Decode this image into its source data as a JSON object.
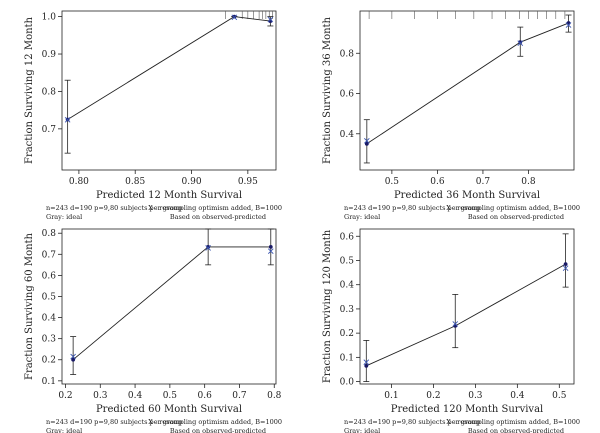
{
  "chart_data": [
    {
      "type": "line",
      "ylabel": "Fraction Surviving 12 Month",
      "xlabel": "Predicted 12 Month Survival",
      "xlim": [
        0.785,
        0.975
      ],
      "ylim": [
        0.59,
        1.015
      ],
      "xticks": [
        0.8,
        0.85,
        0.9,
        0.95
      ],
      "xtick_labels": [
        "0.80",
        "0.85",
        "0.90",
        "0.95"
      ],
      "yticks": [
        0.7,
        0.8,
        0.9,
        1.0
      ],
      "ytick_labels": [
        "0.7",
        "0.8",
        "0.9",
        "1.0"
      ],
      "points": [
        {
          "x": 0.79,
          "y": 0.725,
          "lo": 0.635,
          "hi": 0.83
        },
        {
          "x": 0.938,
          "y": 1.0,
          "lo": 1.0,
          "hi": 1.0
        },
        {
          "x": 0.97,
          "y": 0.988,
          "lo": 0.975,
          "hi": 1.0
        }
      ],
      "corrected": [
        {
          "x": 0.79,
          "y": 0.724
        },
        {
          "x": 0.938,
          "y": 0.998
        },
        {
          "x": 0.97,
          "y": 0.992
        }
      ],
      "rug": [
        0.93,
        0.945,
        0.95,
        0.955,
        0.96,
        0.963,
        0.966,
        0.969,
        0.972
      ],
      "note_left": "n=243 d=190 p=9,80 subjects per group",
      "note_gray": "Gray: ideal",
      "note_right": "X - resampling optimism added, B=1000",
      "note_right2": "Based on observed-predicted"
    },
    {
      "type": "line",
      "ylabel": "Fraction Surviving 36 Month",
      "xlabel": "Predicted 36 Month Survival",
      "xlim": [
        0.43,
        0.9
      ],
      "ylim": [
        0.22,
        1.01
      ],
      "xticks": [
        0.5,
        0.6,
        0.7,
        0.8
      ],
      "xtick_labels": [
        "0.5",
        "0.6",
        "0.7",
        "0.8"
      ],
      "yticks": [
        0.4,
        0.6,
        0.8
      ],
      "ytick_labels": [
        "0.4",
        "0.6",
        "0.8"
      ],
      "points": [
        {
          "x": 0.445,
          "y": 0.35,
          "lo": 0.255,
          "hi": 0.47
        },
        {
          "x": 0.782,
          "y": 0.855,
          "lo": 0.785,
          "hi": 0.93
        },
        {
          "x": 0.888,
          "y": 0.95,
          "lo": 0.905,
          "hi": 0.99
        }
      ],
      "corrected": [
        {
          "x": 0.445,
          "y": 0.365
        },
        {
          "x": 0.782,
          "y": 0.85
        },
        {
          "x": 0.888,
          "y": 0.94
        }
      ],
      "rug": [
        0.45,
        0.5,
        0.55,
        0.6,
        0.64,
        0.68,
        0.72,
        0.75,
        0.78,
        0.8,
        0.82,
        0.84,
        0.86,
        0.88
      ],
      "note_left": "n=243 d=190 p=9,80 subjects per group",
      "note_gray": "Gray: ideal",
      "note_right": "X - resampling optimism added, B=1000",
      "note_right2": "Based on observed-predicted"
    },
    {
      "type": "line",
      "ylabel": "Fraction Surviving 60 Month",
      "xlabel": "Predicted 60 Month Survival",
      "xlim": [
        0.19,
        0.805
      ],
      "ylim": [
        0.085,
        0.82
      ],
      "xticks": [
        0.2,
        0.3,
        0.4,
        0.5,
        0.6,
        0.7,
        0.8
      ],
      "xtick_labels": [
        "0.2",
        "0.3",
        "0.4",
        "0.5",
        "0.6",
        "0.7",
        "0.8"
      ],
      "yticks": [
        0.1,
        0.2,
        0.3,
        0.4,
        0.5,
        0.6,
        0.7,
        0.8
      ],
      "ytick_labels": [
        "0.1",
        "0.2",
        "0.3",
        "0.4",
        "0.5",
        "0.6",
        "0.7",
        "0.8"
      ],
      "points": [
        {
          "x": 0.222,
          "y": 0.2,
          "lo": 0.13,
          "hi": 0.31
        },
        {
          "x": 0.61,
          "y": 0.735,
          "lo": 0.65,
          "hi": 0.82
        },
        {
          "x": 0.79,
          "y": 0.735,
          "lo": 0.65,
          "hi": 0.82
        }
      ],
      "corrected": [
        {
          "x": 0.222,
          "y": 0.215
        },
        {
          "x": 0.61,
          "y": 0.73
        },
        {
          "x": 0.79,
          "y": 0.715
        }
      ],
      "rug": [],
      "note_left": "n=243 d=190 p=9,80 subjects per group",
      "note_gray": "Gray: ideal",
      "note_right": "X - resampling optimism added, B=1000",
      "note_right2": "Based on observed-predicted"
    },
    {
      "type": "line",
      "ylabel": "Fraction Surviving 120 Month",
      "xlabel": "Predicted 120 Month Survival",
      "xlim": [
        0.025,
        0.535
      ],
      "ylim": [
        -0.01,
        0.63
      ],
      "xticks": [
        0.1,
        0.2,
        0.3,
        0.4,
        0.5
      ],
      "xtick_labels": [
        "0.1",
        "0.2",
        "0.3",
        "0.4",
        "0.5"
      ],
      "yticks": [
        0.0,
        0.1,
        0.2,
        0.3,
        0.4,
        0.5,
        0.6
      ],
      "ytick_labels": [
        "0.0",
        "0.1",
        "0.2",
        "0.3",
        "0.4",
        "0.5",
        "0.6"
      ],
      "points": [
        {
          "x": 0.04,
          "y": 0.065,
          "lo": 0.0,
          "hi": 0.17
        },
        {
          "x": 0.252,
          "y": 0.23,
          "lo": 0.14,
          "hi": 0.36
        },
        {
          "x": 0.515,
          "y": 0.485,
          "lo": 0.39,
          "hi": 0.61
        }
      ],
      "corrected": [
        {
          "x": 0.04,
          "y": 0.08
        },
        {
          "x": 0.252,
          "y": 0.238
        },
        {
          "x": 0.515,
          "y": 0.468
        }
      ],
      "rug": [],
      "note_left": "n=243 d=190 p=9,80 subjects per group",
      "note_gray": "Gray: ideal",
      "note_right": "X - resampling optimism added, B=1000",
      "note_right2": "Based on observed-predicted"
    }
  ],
  "colors": {
    "axis": "#222222",
    "line": "#222222",
    "marker_observed": "#1a1a66",
    "marker_corrected": "#3a55b0",
    "rug": "#555555"
  }
}
